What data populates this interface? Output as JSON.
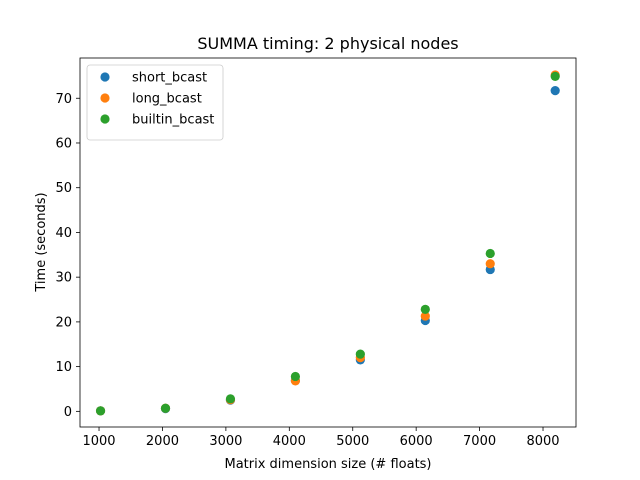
{
  "chart_data": {
    "type": "scatter",
    "title": "SUMMA timing: 2 physical nodes",
    "xlabel": "Matrix dimension size (# floats)",
    "ylabel": "Time (seconds)",
    "xlim": [
      700,
      8520
    ],
    "ylim": [
      -3.5,
      79
    ],
    "xticks": [
      1000,
      2000,
      3000,
      4000,
      5000,
      6000,
      7000,
      8000
    ],
    "yticks": [
      0,
      10,
      20,
      30,
      40,
      50,
      60,
      70
    ],
    "grid": false,
    "legend_position": "top-left",
    "x": [
      1024,
      2048,
      3072,
      4096,
      5120,
      6144,
      7168,
      8192
    ],
    "series": [
      {
        "name": "short_bcast",
        "color": "#1f77b4",
        "values": [
          0.1,
          0.6,
          2.5,
          6.9,
          11.5,
          20.3,
          31.7,
          71.7
        ]
      },
      {
        "name": "long_bcast",
        "color": "#ff7f0e",
        "values": [
          0.1,
          0.7,
          2.6,
          6.8,
          12.0,
          21.3,
          33.0,
          75.2
        ]
      },
      {
        "name": "builtin_bcast",
        "color": "#2ca02c",
        "values": [
          0.1,
          0.7,
          2.8,
          7.8,
          12.8,
          22.8,
          35.3,
          74.9
        ]
      }
    ]
  }
}
